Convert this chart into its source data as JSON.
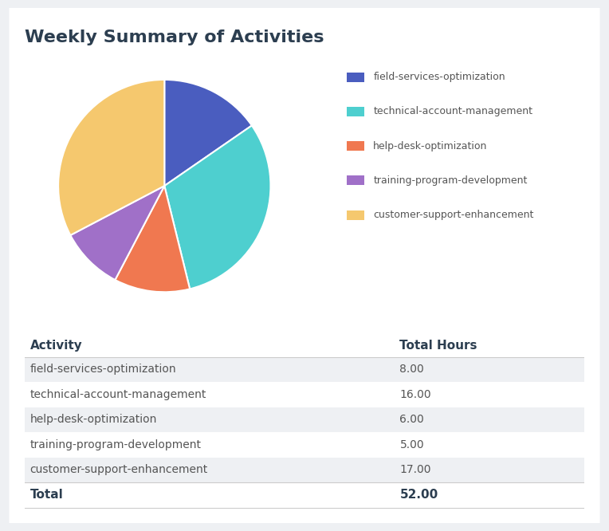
{
  "title": "Weekly Summary of Activities",
  "activities": [
    "field-services-optimization",
    "technical-account-management",
    "help-desk-optimization",
    "training-program-development",
    "customer-support-enhancement"
  ],
  "hours": [
    8.0,
    16.0,
    6.0,
    5.0,
    17.0
  ],
  "total": 52.0,
  "colors": [
    "#4a5dbf",
    "#4ecfcf",
    "#f07850",
    "#a070c8",
    "#f5c86e"
  ],
  "background_color": "#eef0f3",
  "card_color": "#ffffff",
  "title_color": "#2c3e50",
  "table_header_color": "#2c3e50",
  "table_row_alt_color": "#eef0f3",
  "table_row_color": "#ffffff",
  "table_text_color": "#555555",
  "col1_header": "Activity",
  "col2_header": "Total Hours",
  "total_label": "Total",
  "pie_startangle": 90,
  "legend_fontsize": 9,
  "title_fontsize": 16,
  "table_fontsize": 10,
  "header_fontsize": 11
}
